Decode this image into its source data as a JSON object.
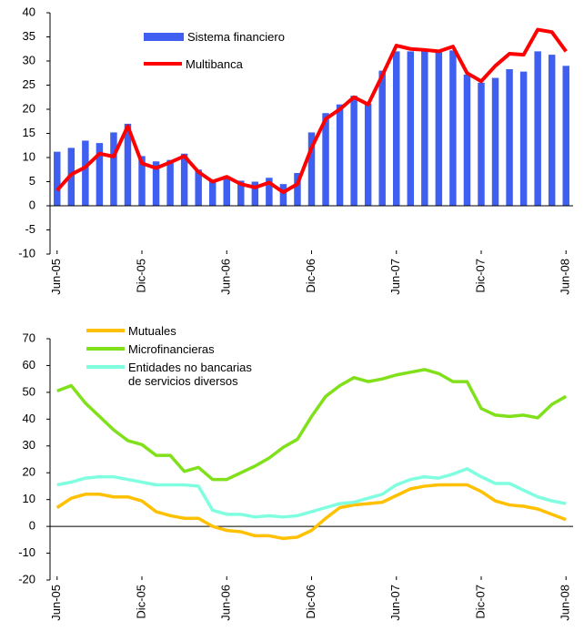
{
  "chart_data": [
    {
      "type": "bar",
      "categories": [
        "Jun-05",
        null,
        null,
        null,
        null,
        null,
        "Dic-05",
        null,
        null,
        null,
        null,
        null,
        "Jun-06",
        null,
        null,
        null,
        null,
        null,
        "Dic-06",
        null,
        null,
        null,
        null,
        null,
        "Jun-07",
        null,
        null,
        null,
        null,
        null,
        "Dic-07",
        null,
        null,
        null,
        null,
        null,
        "Jun-08"
      ],
      "series": [
        {
          "name": "Sistema financiero",
          "type": "bar",
          "color": "#3f5ff0",
          "values": [
            11.2,
            12,
            13.5,
            13,
            15.2,
            17,
            10.3,
            9.2,
            9.5,
            10.8,
            7.5,
            5.2,
            5.8,
            5.2,
            5,
            5.8,
            4.5,
            6.8,
            15.2,
            19.2,
            21,
            22.8,
            21.2,
            28,
            32,
            32,
            32,
            32,
            32.2,
            27.2,
            25.5,
            26.5,
            28.3,
            27.8,
            32,
            31.3,
            29
          ]
        },
        {
          "name": "Multibanca",
          "type": "line",
          "color": "#ff0000",
          "values": [
            3.2,
            6.5,
            8,
            10.8,
            10.2,
            16.5,
            8.8,
            7.8,
            9,
            10.3,
            7,
            5,
            6,
            4.5,
            3.8,
            4.8,
            2.8,
            4.5,
            12,
            18,
            20,
            22.5,
            21,
            27,
            33.2,
            32.5,
            32.3,
            32,
            33,
            27.5,
            25.8,
            29,
            31.5,
            31.3,
            36.5,
            36,
            32
          ]
        }
      ],
      "ylim": [
        -10,
        40
      ],
      "yticks": [
        -10,
        -5,
        0,
        5,
        10,
        15,
        20,
        25,
        30,
        35,
        40
      ]
    },
    {
      "type": "line",
      "categories": [
        "Jun-05",
        null,
        null,
        null,
        null,
        null,
        "Dic-05",
        null,
        null,
        null,
        null,
        null,
        "Jun-06",
        null,
        null,
        null,
        null,
        null,
        "Dic-06",
        null,
        null,
        null,
        null,
        null,
        "Jun-07",
        null,
        null,
        null,
        null,
        null,
        "Dic-07",
        null,
        null,
        null,
        null,
        null,
        "Jun-08"
      ],
      "series": [
        {
          "name": "Mutuales",
          "color": "#ffc000",
          "values": [
            7,
            10.5,
            12,
            12,
            11,
            11,
            9.5,
            5.5,
            4,
            3,
            3,
            0,
            -1.5,
            -2,
            -3.5,
            -3.5,
            -4.5,
            -4,
            -1.5,
            3,
            7,
            8,
            8.5,
            9,
            11.5,
            14,
            15,
            15.5,
            15.5,
            15.5,
            13,
            9.5,
            8,
            7.5,
            6.5,
            4.5,
            2.5
          ]
        },
        {
          "name": "Microfinancieras",
          "color": "#80e01a",
          "values": [
            50.5,
            52.5,
            46,
            41,
            36,
            32,
            30.5,
            26.5,
            26.5,
            20.5,
            22,
            17.5,
            17.5,
            20,
            22.5,
            25.5,
            29.5,
            32.5,
            41,
            48.5,
            52.5,
            55.5,
            54,
            55,
            56.5,
            57.5,
            58.5,
            57,
            54,
            54,
            44,
            41.5,
            41,
            41.5,
            40.5,
            45.5,
            48.5
          ]
        },
        {
          "name": "Entidades no bancarias\nde servicios diversos",
          "color": "#80ffe0",
          "values": [
            15.5,
            16.5,
            18,
            18.5,
            18.5,
            17.5,
            16.5,
            15.5,
            15.5,
            15.5,
            15,
            6,
            4.5,
            4.5,
            3.5,
            4,
            3.5,
            4,
            5.5,
            7,
            8.5,
            9,
            10.5,
            12,
            15.5,
            17.5,
            18.5,
            18,
            19.5,
            21.5,
            18.5,
            16,
            16,
            13.5,
            11,
            9.5,
            8.5
          ]
        }
      ],
      "ylim": [
        -20,
        70
      ],
      "yticks": [
        -20,
        -10,
        0,
        10,
        20,
        30,
        40,
        50,
        60,
        70
      ]
    }
  ]
}
